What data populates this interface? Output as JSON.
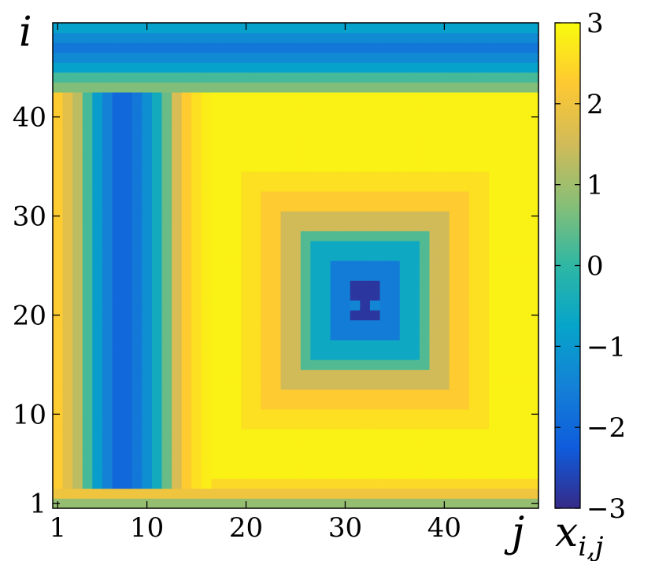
{
  "chart_data": {
    "type": "heatmap",
    "title": "",
    "xlabel": "j",
    "ylabel": "i",
    "colorbar_label": "x_{i,j}",
    "x_range": [
      1,
      49
    ],
    "y_range": [
      1,
      49
    ],
    "x_ticks": [
      1,
      10,
      20,
      30,
      40
    ],
    "y_ticks": [
      1,
      10,
      20,
      30,
      40
    ],
    "colorbar_ticks": [
      3,
      2,
      1,
      0,
      -1,
      -2,
      -3
    ],
    "colorbar_tick_labels": [
      "3",
      "2",
      "1",
      "0",
      "−1",
      "−2",
      "−3"
    ],
    "value_range": [
      -3,
      3
    ],
    "colormap": "parula",
    "colormap_stops": [
      "#352a87",
      "#0f5cdd",
      "#1481d6",
      "#06a4ca",
      "#2eb7a4",
      "#87bf77",
      "#d1bb59",
      "#fec832",
      "#f9fb0e"
    ],
    "grid": false,
    "structure": {
      "row_profile_i_1_to_49": [
        1.2,
        0,
        0.5,
        2.3,
        2.8,
        2.8,
        2.8,
        2.8,
        2.8,
        2.8,
        2.8,
        2.8,
        2.8,
        2.8,
        2.8,
        2.8,
        2.8,
        2.8,
        2.8,
        2.8,
        2.8,
        2.8,
        2.8,
        2.8,
        2.8,
        2.8,
        2.8,
        2.8,
        2.8,
        2.8,
        2.8,
        2.8,
        2.8,
        2.8,
        2.8,
        2.8,
        2.8,
        2.8,
        2.8,
        2.8,
        2.8,
        2.8,
        2.8,
        2.8,
        2.8,
        2.8,
        2.8,
        2.8,
        2.8
      ],
      "column_profile_j_1_to_49": [
        2.3,
        1.8,
        1.3,
        0.2,
        -0.9,
        -1.5,
        -2.0,
        -2.0,
        -1.7,
        -1.2,
        -0.5,
        0.5,
        1.6,
        2.3,
        2.6,
        2.8,
        2.8,
        2.8,
        2.8,
        2.8,
        2.8,
        2.8,
        2.8,
        2.8,
        2.8,
        2.8,
        2.8,
        2.8,
        2.8,
        2.8,
        2.8,
        2.8,
        2.8,
        2.8,
        2.8,
        2.8,
        2.8,
        2.8,
        2.8,
        2.8,
        2.8,
        2.8,
        2.8,
        2.8,
        2.8,
        2.8,
        2.8,
        2.8,
        2.8
      ],
      "top_rows": [
        {
          "i": 43,
          "value": 0.7
        },
        {
          "i": 44,
          "value": 0.2
        },
        {
          "i": 45,
          "value": -0.8
        },
        {
          "i": 46,
          "value": -1.3
        },
        {
          "i": 47,
          "value": -1.7
        },
        {
          "i": 48,
          "value": -1.3
        },
        {
          "i": 49,
          "value": -0.8
        }
      ],
      "left_column_region": {
        "j_from": 1,
        "j_to": 16,
        "i_from": 3,
        "i_to": 42
      },
      "concentric_center": {
        "i": 21.5,
        "j": 32
      },
      "concentric_rings_by_chebyshev_distance": [
        {
          "max_distance": 1,
          "value": -2.8
        },
        {
          "max_distance": 3,
          "value": -1.6
        },
        {
          "max_distance": 5,
          "value": -0.6
        },
        {
          "max_distance": 6,
          "value": 0.3
        },
        {
          "max_distance": 8,
          "value": 1.5
        },
        {
          "max_distance": 10,
          "value": 2.3
        },
        {
          "max_distance": 12,
          "value": 2.6
        },
        {
          "max_distance": 99,
          "value": 2.85
        }
      ],
      "center_bright_pixels": [
        {
          "i": 21,
          "j": 31
        },
        {
          "i": 21,
          "j": 33
        }
      ],
      "bottom_rows": [
        {
          "i": 1,
          "value": 0.9
        },
        {
          "i": 2,
          "value": 2.0
        },
        {
          "i": 3,
          "value": 2.5
        }
      ]
    }
  }
}
